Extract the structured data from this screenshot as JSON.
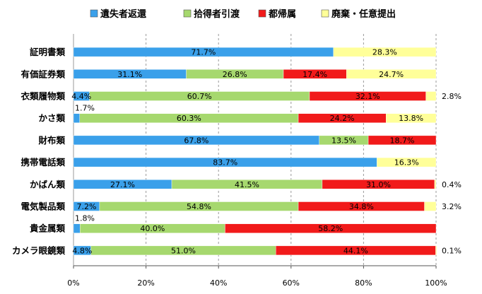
{
  "chart_data": {
    "type": "bar",
    "orientation": "horizontal",
    "stacked": "percent",
    "title": "",
    "xlabel": "",
    "ylabel": "",
    "xlim": [
      0,
      100
    ],
    "x_ticks": [
      "0%",
      "20%",
      "40%",
      "60%",
      "80%",
      "100%"
    ],
    "grid": "vertical-dashed",
    "legend_position": "top",
    "categories": [
      "証明書類",
      "有価証券類",
      "衣類履物類",
      "かさ類",
      "財布類",
      "携帯電話類",
      "かばん類",
      "電気製品類",
      "貴金属類",
      "カメラ眼鏡類"
    ],
    "series": [
      {
        "name": "遺失者返還",
        "color": "#3aa0ea",
        "values": [
          71.7,
          31.1,
          4.4,
          1.7,
          67.8,
          83.7,
          27.1,
          7.2,
          1.8,
          4.8
        ]
      },
      {
        "name": "拾得者引渡",
        "color": "#a6d86e",
        "values": [
          0,
          26.8,
          60.7,
          60.3,
          13.5,
          0,
          41.5,
          54.8,
          40.0,
          51.0
        ]
      },
      {
        "name": "都帰属",
        "color": "#f11a1a",
        "values": [
          0,
          17.4,
          32.1,
          24.2,
          18.7,
          0,
          31.0,
          34.8,
          58.2,
          44.1
        ]
      },
      {
        "name": "廃棄・任意提出",
        "color": "#ffff99",
        "values": [
          28.3,
          24.7,
          2.8,
          13.8,
          0,
          16.3,
          0.4,
          3.2,
          0,
          0.1
        ]
      }
    ],
    "data_labels": [
      [
        "71.7%",
        "",
        "",
        "28.3%"
      ],
      [
        "31.1%",
        "26.8%",
        "17.4%",
        "24.7%"
      ],
      [
        "4.4%",
        "60.7%",
        "32.1%",
        "2.8%"
      ],
      [
        "1.7%",
        "60.3%",
        "24.2%",
        "13.8%"
      ],
      [
        "67.8%",
        "13.5%",
        "18.7%",
        ""
      ],
      [
        "83.7%",
        "",
        "",
        "16.3%"
      ],
      [
        "27.1%",
        "41.5%",
        "31.0%",
        "0.4%"
      ],
      [
        "7.2%",
        "54.8%",
        "34.8%",
        "3.2%"
      ],
      [
        "1.8%",
        "40.0%",
        "58.2%",
        ""
      ],
      [
        "4.8%",
        "51.0%",
        "44.1%",
        "0.1%"
      ]
    ]
  }
}
